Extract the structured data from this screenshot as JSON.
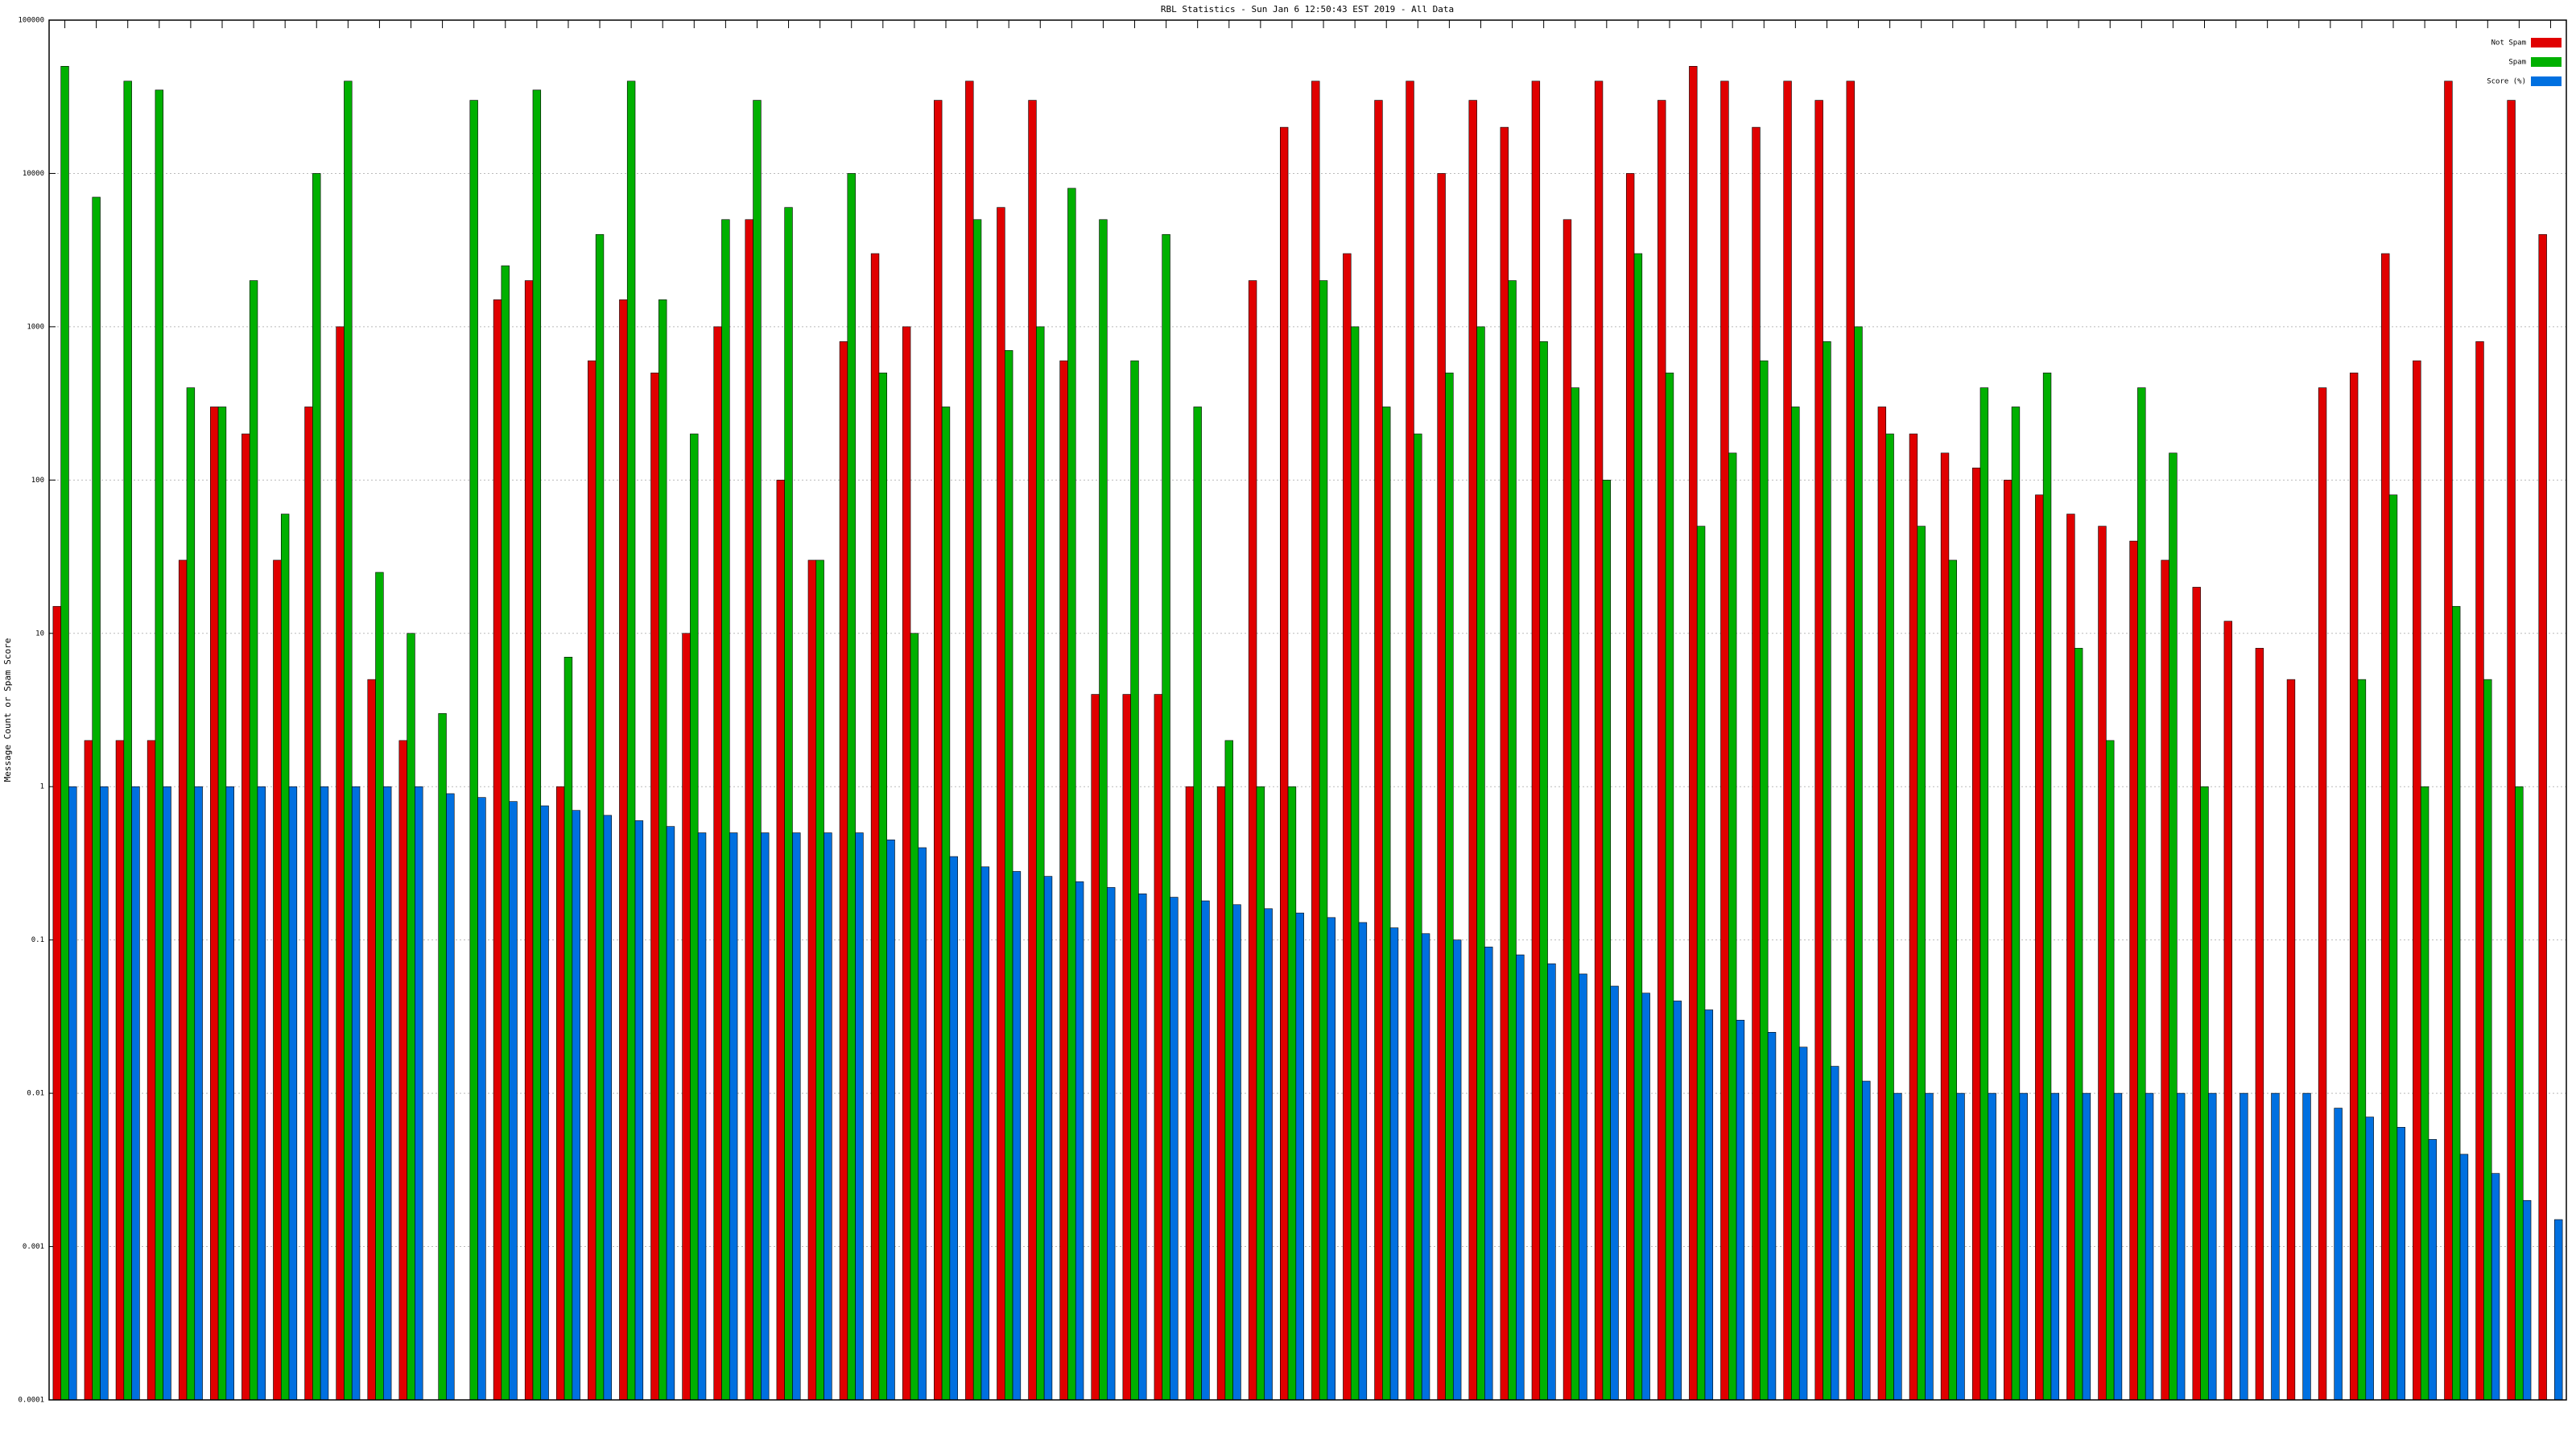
{
  "chart_data": {
    "type": "bar",
    "log_scale": true,
    "grid": true,
    "legend": "top-right",
    "title": "RBL Statistics - Sun Jan 6 12:50:43 EST 2019 - All Data",
    "y_label": "Message Count or Spam Score",
    "ylim": [
      0.0001,
      100000
    ],
    "yticks": [
      0.0001,
      0.001,
      0.01,
      0.1,
      1,
      10,
      100,
      1000,
      10000,
      100000
    ],
    "categories": [
      null,
      null,
      null,
      null,
      null,
      null,
      null,
      null,
      null,
      null,
      null,
      null,
      null,
      null,
      null,
      null,
      null,
      null,
      null,
      null,
      null,
      null,
      null,
      null,
      null,
      null,
      null,
      null,
      null,
      null,
      null,
      null,
      null,
      null,
      null,
      null,
      null,
      null,
      null,
      null,
      null,
      null,
      null,
      null,
      null,
      null,
      null,
      null,
      null,
      null,
      null,
      null,
      null,
      null,
      null,
      null,
      null,
      null,
      null,
      null,
      null,
      null,
      null,
      null,
      null,
      null,
      null,
      null,
      null,
      null,
      null,
      null,
      null,
      null,
      null,
      null,
      null,
      null,
      null,
      null
    ],
    "series": [
      {
        "name": "Not Spam",
        "color": "#e00000",
        "values": [
          15,
          2,
          2,
          2,
          30,
          300,
          200,
          30,
          300,
          1000,
          5,
          2,
          null,
          null,
          1500,
          2000,
          1,
          600,
          1500,
          500,
          10,
          1000,
          5000,
          100,
          30,
          800,
          3000,
          1000,
          30000,
          40000,
          6000,
          30000,
          600,
          4,
          4,
          4,
          1,
          1,
          2000,
          20000,
          40000,
          3000,
          30000,
          40000,
          10000,
          30000,
          20000,
          40000,
          5000,
          40000,
          10000,
          30000,
          50000,
          40000,
          20000,
          40000,
          30000,
          40000,
          300,
          200,
          150,
          120,
          100,
          80,
          60,
          50,
          40,
          30,
          20,
          12,
          8,
          5,
          400,
          500,
          3000,
          600,
          40000,
          800,
          30000,
          4000
        ]
      },
      {
        "name": "Spam",
        "color": "#00b000",
        "values": [
          50000,
          7000,
          40000,
          35000,
          400,
          300,
          2000,
          60,
          10000,
          40000,
          25,
          10,
          3,
          30000,
          2500,
          35000,
          7,
          4000,
          40000,
          1500,
          200,
          5000,
          30000,
          6000,
          30,
          10000,
          500,
          10,
          300,
          5000,
          700,
          1000,
          8000,
          5000,
          600,
          4000,
          300,
          2,
          1,
          1,
          2000,
          1000,
          300,
          200,
          500,
          1000,
          2000,
          800,
          400,
          100,
          3000,
          500,
          50,
          150,
          600,
          300,
          800,
          1000,
          200,
          50,
          30,
          400,
          300,
          500,
          8,
          2,
          400,
          150,
          1,
          null,
          null,
          null,
          null,
          5,
          80,
          1,
          15,
          5,
          1,
          null
        ]
      },
      {
        "name": "Score (%)",
        "color": "#0070e0",
        "values": [
          1,
          1,
          1,
          1,
          1,
          1,
          1,
          1,
          1,
          1,
          1,
          1,
          0.9,
          0.85,
          0.8,
          0.75,
          0.7,
          0.65,
          0.6,
          0.55,
          0.5,
          0.5,
          0.5,
          0.5,
          0.5,
          0.5,
          0.45,
          0.4,
          0.35,
          0.3,
          0.28,
          0.26,
          0.24,
          0.22,
          0.2,
          0.19,
          0.18,
          0.17,
          0.16,
          0.15,
          0.14,
          0.13,
          0.12,
          0.11,
          0.1,
          0.09,
          0.08,
          0.07,
          0.06,
          0.05,
          0.045,
          0.04,
          0.035,
          0.03,
          0.025,
          0.02,
          0.015,
          0.012,
          0.01,
          0.01,
          0.01,
          0.01,
          0.01,
          0.01,
          0.01,
          0.01,
          0.01,
          0.01,
          0.01,
          0.01,
          0.01,
          0.01,
          0.008,
          0.007,
          0.006,
          0.005,
          0.004,
          0.003,
          0.002,
          0.0015
        ]
      }
    ]
  }
}
